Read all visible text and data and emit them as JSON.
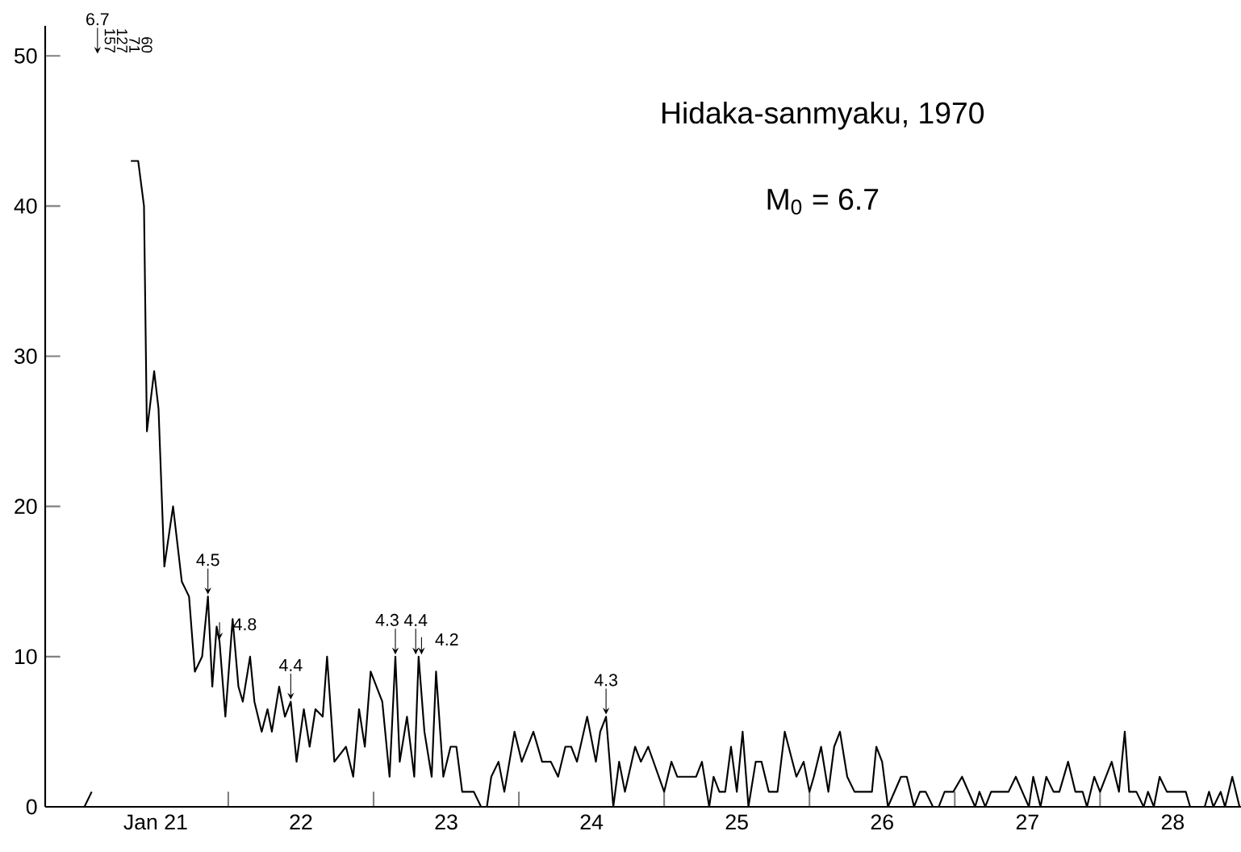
{
  "chart_data": {
    "type": "line",
    "title": "Hidaka-sanmyaku, 1970",
    "subtitle": "M$_{0}$ = 6.7",
    "color": "#000000",
    "x": [
      21.01,
      21.06,
      21.15,
      21.33,
      21.38,
      21.42,
      21.44,
      21.49,
      21.52,
      21.56,
      21.62,
      21.68,
      21.73,
      21.77,
      21.82,
      21.86,
      21.89,
      21.92,
      21.94,
      21.98,
      22.03,
      22.07,
      22.1,
      22.15,
      22.18,
      22.23,
      22.27,
      22.3,
      22.35,
      22.39,
      22.43,
      22.47,
      22.52,
      22.56,
      22.6,
      22.65,
      22.68,
      22.73,
      22.81,
      22.86,
      22.9,
      22.94,
      22.98,
      23.06,
      23.11,
      23.15,
      23.18,
      23.23,
      23.28,
      23.31,
      23.35,
      23.4,
      23.43,
      23.48,
      23.53,
      23.57,
      23.61,
      23.69,
      23.74,
      23.78,
      23.81,
      23.86,
      23.9,
      23.97,
      24.02,
      24.1,
      24.16,
      24.22,
      24.27,
      24.32,
      24.36,
      24.4,
      24.47,
      24.53,
      24.56,
      24.6,
      24.65,
      24.69,
      24.73,
      24.8,
      24.84,
      24.89,
      25.0,
      25.05,
      25.09,
      25.22,
      25.26,
      25.31,
      25.34,
      25.38,
      25.42,
      25.46,
      25.5,
      25.54,
      25.58,
      25.63,
      25.67,
      25.72,
      25.78,
      25.83,
      25.91,
      25.96,
      26.0,
      26.03,
      26.08,
      26.13,
      26.17,
      26.21,
      26.26,
      26.31,
      26.43,
      26.46,
      26.5,
      26.54,
      26.63,
      26.67,
      26.72,
      26.76,
      26.8,
      26.85,
      26.89,
      26.93,
      26.99,
      27.05,
      27.14,
      27.17,
      27.21,
      27.25,
      27.37,
      27.42,
      27.51,
      27.54,
      27.59,
      27.63,
      27.68,
      27.72,
      27.78,
      27.83,
      27.88,
      27.91,
      27.96,
      28.0,
      28.08,
      28.13,
      28.17,
      28.2,
      28.25,
      28.3,
      28.33,
      28.37,
      28.41,
      28.46,
      28.59,
      28.62,
      28.72,
      28.75,
      28.78,
      28.83,
      28.86,
      28.91,
      28.96
    ],
    "values": [
      0,
      1,
      null,
      43,
      43,
      40,
      25,
      29,
      26.5,
      16,
      20,
      15,
      14,
      9,
      10,
      14,
      8,
      12,
      11,
      6,
      12.5,
      8,
      7,
      10,
      7,
      5,
      6.5,
      5,
      8,
      6,
      7,
      3,
      6.5,
      4,
      6.5,
      6,
      10,
      3,
      4,
      2,
      6.5,
      4,
      9,
      7,
      2,
      10,
      3,
      6,
      2,
      10,
      5,
      2,
      9,
      2,
      4,
      4,
      1,
      1,
      0,
      0,
      2,
      3,
      1,
      5,
      3,
      5,
      3,
      3,
      2,
      4,
      4,
      3,
      6,
      3,
      5,
      6,
      0,
      3,
      1,
      4,
      3,
      4,
      1,
      3,
      2,
      2,
      3,
      0,
      2,
      1,
      1,
      4,
      1,
      5,
      0,
      3,
      3,
      1,
      1,
      5,
      2,
      3,
      1,
      2,
      4,
      1,
      4,
      5,
      2,
      1,
      1,
      4,
      3,
      0,
      2,
      2,
      0,
      1,
      1,
      0,
      0,
      1,
      1,
      2,
      0,
      1,
      0,
      1,
      1,
      2,
      0,
      2,
      0,
      2,
      1,
      1,
      3,
      1,
      1,
      0,
      2,
      1,
      3,
      1,
      5,
      1,
      1,
      0,
      1,
      0,
      2,
      1,
      1,
      0,
      0,
      1,
      0,
      1,
      0,
      2,
      0
    ],
    "xlim": [
      20.74,
      28.97
    ],
    "ylim": [
      0,
      52
    ],
    "xticks": [
      {
        "value": 21.5,
        "label": "Jan 21"
      },
      {
        "value": 22,
        "label": null
      },
      {
        "value": 22.5,
        "label": "22"
      },
      {
        "value": 23,
        "label": null
      },
      {
        "value": 23.5,
        "label": "23"
      },
      {
        "value": 24,
        "label": null
      },
      {
        "value": 24.5,
        "label": "24"
      },
      {
        "value": 25,
        "label": null
      },
      {
        "value": 25.5,
        "label": "25"
      },
      {
        "value": 26,
        "label": null
      },
      {
        "value": 26.5,
        "label": "26"
      },
      {
        "value": 27,
        "label": null
      },
      {
        "value": 27.5,
        "label": "27"
      },
      {
        "value": 28,
        "label": null
      },
      {
        "value": 28.5,
        "label": "28"
      }
    ],
    "yticks": [
      0,
      10,
      20,
      30,
      40,
      50
    ],
    "annotations": [
      "6.7",
      {
        "text": "4.5",
        "x": 21.86,
        "y": 14
      },
      {
        "text": "4.8",
        "x": 21.94,
        "y": 11
      },
      {
        "text": "4.4",
        "x": 22.43,
        "y": 7
      },
      {
        "text": "4.3",
        "x": 23.15,
        "y": 10
      },
      {
        "text": "4.4",
        "x": 23.29,
        "y": 10
      },
      {
        "text": "4.2",
        "x": 23.33,
        "y": 10
      },
      {
        "text": "4.3",
        "x": 24.6,
        "y": 6
      },
      "157",
      "127",
      "71",
      "60"
    ]
  }
}
